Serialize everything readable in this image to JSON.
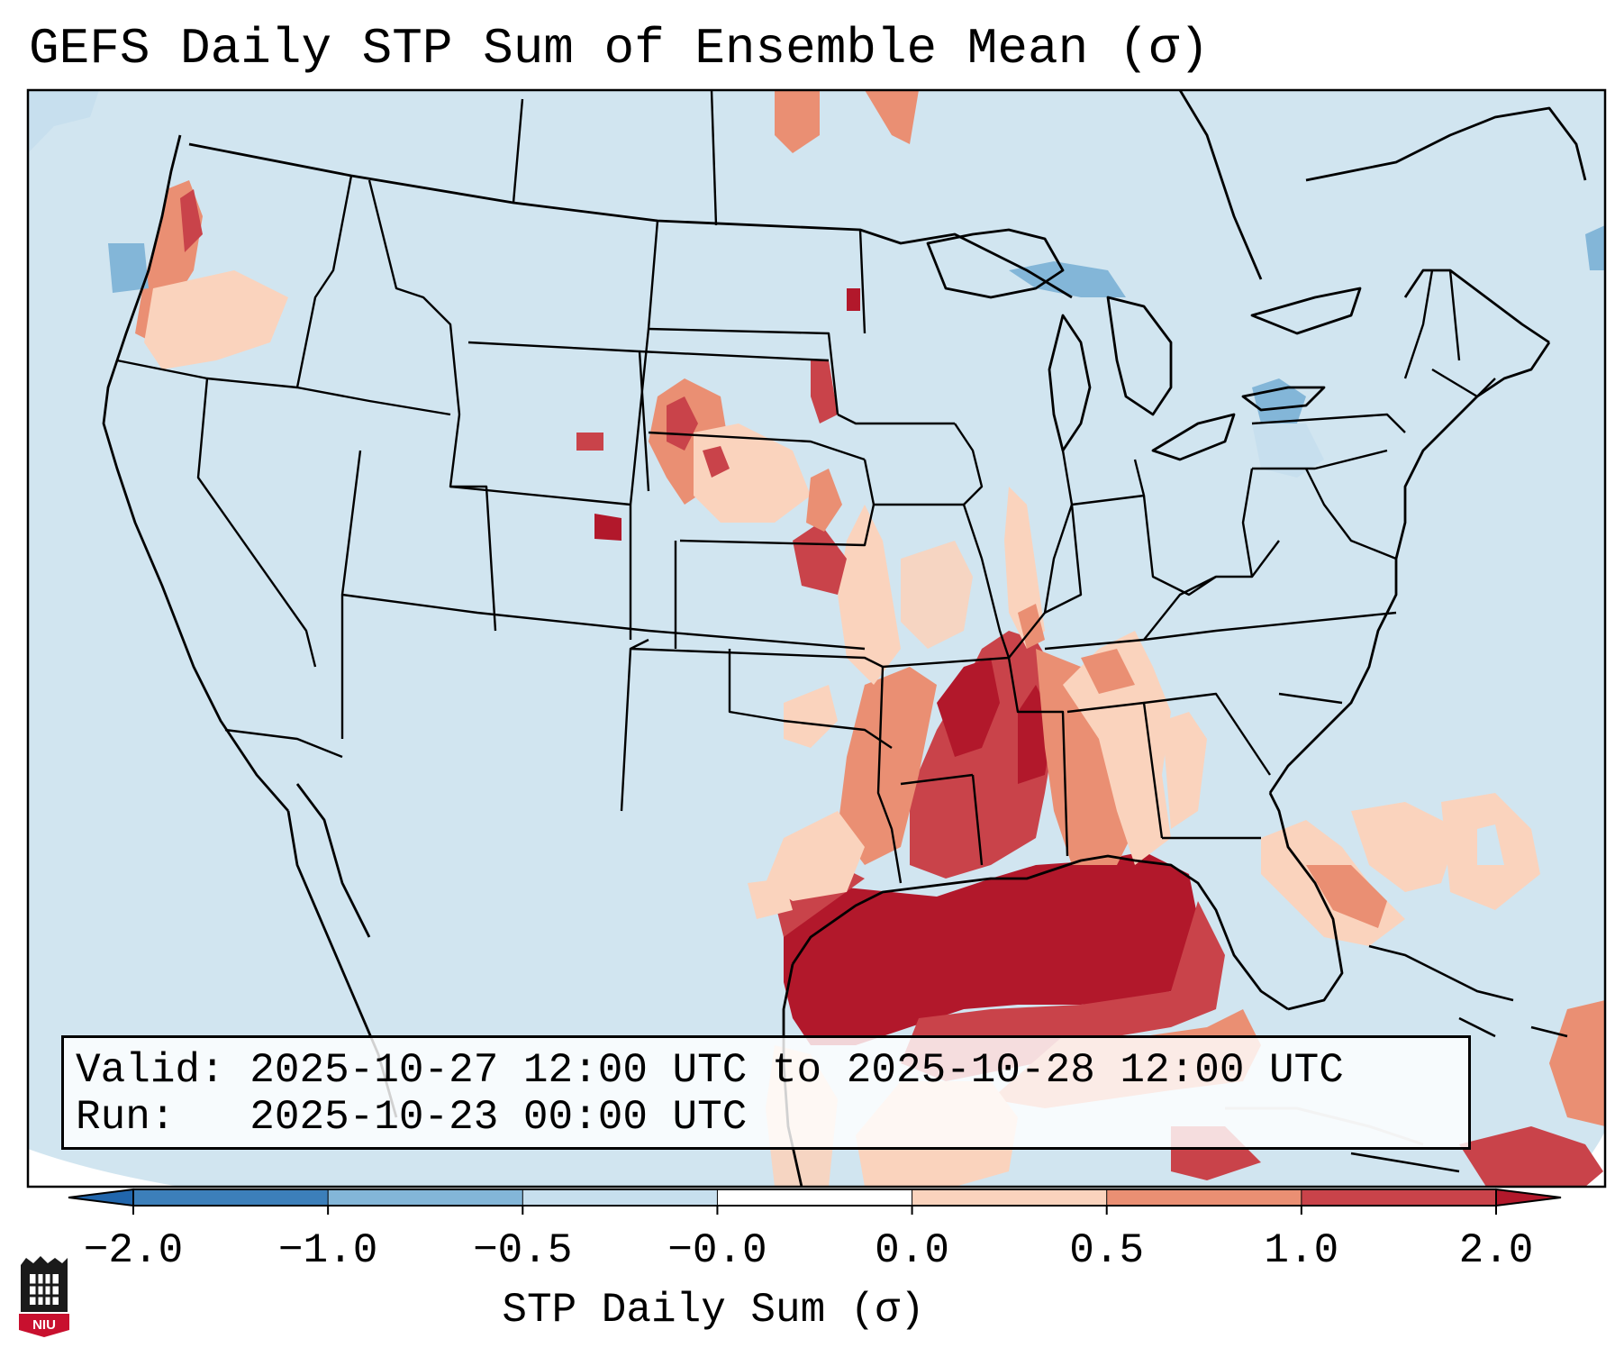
{
  "title": "GEFS Daily STP Sum of Ensemble Mean (σ)",
  "info": {
    "valid_label": "Valid:",
    "valid_value": "2025-10-27 12:00 UTC to 2025-10-28 12:00 UTC",
    "run_label": "Run:",
    "run_value": "2025-10-23 00:00 UTC"
  },
  "colorbar": {
    "label": "STP Daily Sum (σ)",
    "ticks": [
      "−2.0",
      "−1.0",
      "−0.5",
      "−0.0",
      "0.0",
      "0.5",
      "1.0",
      "2.0"
    ],
    "colors": [
      "#3c7fba",
      "#83b6d8",
      "#c7dfee",
      "#ffffff",
      "#fad3bd",
      "#ea8f73",
      "#c9434a"
    ],
    "under_color": "#2166ac",
    "over_color": "#b2182b"
  },
  "map": {
    "background_color": "#d1e5f0",
    "strong_positive_region": "Gulf of Mexico and Lower Mississippi Valley",
    "moderate_positive_regions": [
      "Southern Plains",
      "Central Plains",
      "Florida Peninsula",
      "Western Atlantic",
      "Pacific Northwest"
    ],
    "negative_regions": [
      "Great Lakes",
      "Northeast",
      "Pacific Ocean"
    ]
  },
  "logo": {
    "text": "NIU",
    "icon": "niu-logo-icon"
  }
}
